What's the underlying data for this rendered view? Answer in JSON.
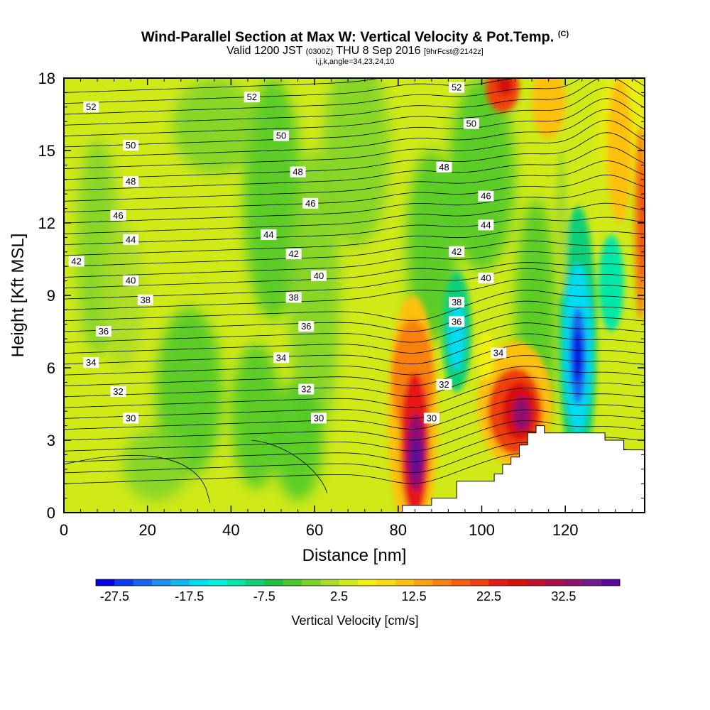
{
  "title": {
    "main": "Wind-Parallel Section at Max W: Vertical Velocity & Pot.Temp.",
    "copyright": "(C)",
    "valid_prefix": "Valid 1200 JST",
    "utc": "(0300Z)",
    "date": "THU 8 Sep 2016",
    "forecast": "[9hrFcst@2142z]",
    "indices": "i,j,k,angle=34,23,24,10"
  },
  "chart_data": {
    "type": "heatmap",
    "title": "Wind-Parallel Section at Max W: Vertical Velocity & Pot.Temp.",
    "xlabel": "Distance [nm]",
    "ylabel": "Height [Kft MSL]",
    "xlim": [
      0,
      139
    ],
    "ylim": [
      0,
      18
    ],
    "xticks": [
      0,
      20,
      40,
      60,
      80,
      100,
      120
    ],
    "yticks": [
      0,
      3,
      6,
      9,
      12,
      15,
      18
    ],
    "colorbar": {
      "label": "Vertical Velocity [cm/s]",
      "tick_labels": [
        "-27.5",
        "-17.5",
        "-7.5",
        "2.5",
        "12.5",
        "22.5",
        "32.5"
      ],
      "tick_values": [
        -27.5,
        -17.5,
        -7.5,
        2.5,
        12.5,
        22.5,
        32.5
      ],
      "levels": [
        -30,
        -27.5,
        -25,
        -22.5,
        -20,
        -17.5,
        -15,
        -12.5,
        -10,
        -7.5,
        -5,
        -2.5,
        0,
        2.5,
        5,
        7.5,
        10,
        12.5,
        15,
        17.5,
        20,
        22.5,
        25,
        27.5,
        30,
        32.5,
        35,
        37.5,
        40
      ],
      "colors": [
        "#0000e0",
        "#0a3cf0",
        "#1464f0",
        "#1e90f0",
        "#14b4f0",
        "#00dcf0",
        "#00f0dc",
        "#00e8a8",
        "#10d078",
        "#20c040",
        "#48c828",
        "#7cd228",
        "#a8dc28",
        "#d0ea18",
        "#f0f010",
        "#f8dc10",
        "#fcc010",
        "#fca010",
        "#f88010",
        "#f86010",
        "#f04010",
        "#e81818",
        "#d8100c",
        "#c0102c",
        "#a8104c",
        "#901070",
        "#701890",
        "#5a0a9c"
      ]
    },
    "features": [
      {
        "type": "updraft",
        "x": 84,
        "height": 2.5,
        "max_cm_s": 37
      },
      {
        "type": "updraft",
        "x": 109,
        "height": 4.2,
        "max_cm_s": 32
      },
      {
        "type": "updraft",
        "x": 83,
        "height": 6.0,
        "max_cm_s": 17
      },
      {
        "type": "downdraft",
        "x": 123,
        "height": 6.5,
        "min_cm_s": -30
      },
      {
        "type": "downdraft",
        "x": 94,
        "height": 7.5,
        "min_cm_s": -16
      },
      {
        "type": "updraft",
        "x": 138,
        "height": 12.0,
        "max_cm_s": 22
      },
      {
        "type": "updraft",
        "x": 105,
        "height": 17.5,
        "max_cm_s": 24
      }
    ],
    "isentropes": {
      "levels": [
        30,
        32,
        34,
        36,
        38,
        40,
        42,
        44,
        46,
        48,
        50,
        52
      ],
      "labels": [
        {
          "text": "52",
          "x": 6.5,
          "height": 16.8
        },
        {
          "text": "52",
          "x": 45,
          "height": 17.2
        },
        {
          "text": "52",
          "x": 94,
          "height": 17.6
        },
        {
          "text": "50",
          "x": 16,
          "height": 15.2
        },
        {
          "text": "50",
          "x": 52,
          "height": 15.6
        },
        {
          "text": "50",
          "x": 97.5,
          "height": 16.1
        },
        {
          "text": "48",
          "x": 16,
          "height": 13.7
        },
        {
          "text": "48",
          "x": 56,
          "height": 14.1
        },
        {
          "text": "48",
          "x": 91,
          "height": 14.3
        },
        {
          "text": "46",
          "x": 13,
          "height": 12.3
        },
        {
          "text": "46",
          "x": 59,
          "height": 12.8
        },
        {
          "text": "46",
          "x": 101,
          "height": 13.1
        },
        {
          "text": "44",
          "x": 16,
          "height": 11.3
        },
        {
          "text": "44",
          "x": 49,
          "height": 11.5
        },
        {
          "text": "44",
          "x": 101,
          "height": 11.9
        },
        {
          "text": "42",
          "x": 3,
          "height": 10.4
        },
        {
          "text": "42",
          "x": 55,
          "height": 10.7
        },
        {
          "text": "42",
          "x": 94,
          "height": 10.8
        },
        {
          "text": "40",
          "x": 16,
          "height": 9.6
        },
        {
          "text": "40",
          "x": 61,
          "height": 9.8
        },
        {
          "text": "40",
          "x": 101,
          "height": 9.7
        },
        {
          "text": "38",
          "x": 19.5,
          "height": 8.8
        },
        {
          "text": "38",
          "x": 55,
          "height": 8.9
        },
        {
          "text": "38",
          "x": 94,
          "height": 8.7
        },
        {
          "text": "36",
          "x": 9.5,
          "height": 7.5
        },
        {
          "text": "36",
          "x": 58,
          "height": 7.7
        },
        {
          "text": "36",
          "x": 94,
          "height": 7.9
        },
        {
          "text": "34",
          "x": 6.5,
          "height": 6.2
        },
        {
          "text": "34",
          "x": 52,
          "height": 6.4
        },
        {
          "text": "34",
          "x": 104,
          "height": 6.6
        },
        {
          "text": "32",
          "x": 13,
          "height": 5.0
        },
        {
          "text": "32",
          "x": 58,
          "height": 5.1
        },
        {
          "text": "32",
          "x": 91,
          "height": 5.3
        },
        {
          "text": "30",
          "x": 16,
          "height": 3.9
        },
        {
          "text": "30",
          "x": 61,
          "height": 3.9
        },
        {
          "text": "30",
          "x": 88,
          "height": 3.9
        }
      ]
    },
    "terrain_steps": [
      {
        "x": 80.5,
        "height": 0.0
      },
      {
        "x": 81,
        "height": 0.3
      },
      {
        "x": 88,
        "height": 0.6
      },
      {
        "x": 94,
        "height": 1.3
      },
      {
        "x": 103,
        "height": 1.6
      },
      {
        "x": 105,
        "height": 2.0
      },
      {
        "x": 107,
        "height": 2.3
      },
      {
        "x": 109,
        "height": 2.8
      },
      {
        "x": 111,
        "height": 3.3
      },
      {
        "x": 113,
        "height": 3.6
      },
      {
        "x": 115,
        "height": 3.3
      },
      {
        "x": 129.5,
        "height": 3.0
      },
      {
        "x": 134,
        "height": 2.6
      },
      {
        "x": 139,
        "height": 2.6
      }
    ]
  }
}
